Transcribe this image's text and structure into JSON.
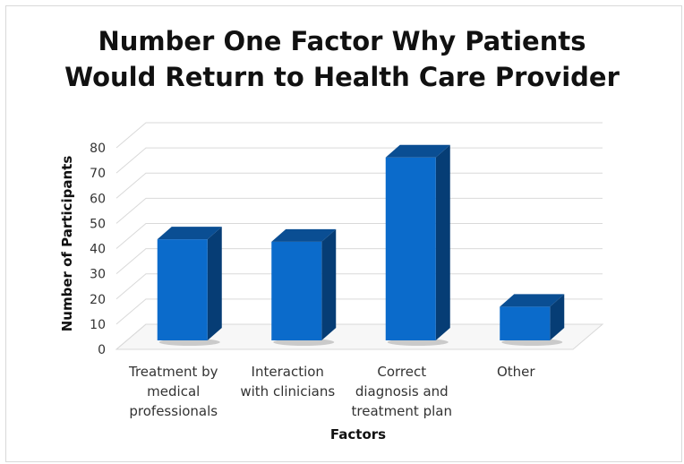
{
  "chart_data": {
    "type": "bar",
    "title_lines": [
      "Number One Factor Why Patients",
      "Would Return to Health Care Provider"
    ],
    "xlabel": "Factors",
    "ylabel": "Number of Participants",
    "categories": [
      [
        "Treatment by",
        "medical",
        "professionals"
      ],
      [
        "Interaction",
        "with clinicians"
      ],
      [
        "Correct",
        "diagnosis and",
        "treatment plan"
      ],
      [
        "Other"
      ]
    ],
    "values": [
      42,
      41,
      76,
      14
    ],
    "ylim": [
      0,
      80
    ],
    "yticks": [
      0,
      10,
      20,
      30,
      40,
      50,
      60,
      70,
      80
    ],
    "grid": true,
    "style": "3d-column",
    "colors": {
      "bar_front": "#0b6bcb",
      "bar_top": "#0a4e93",
      "bar_side": "#063d75",
      "grid": "#d9d9d9",
      "text": "#111111"
    }
  }
}
